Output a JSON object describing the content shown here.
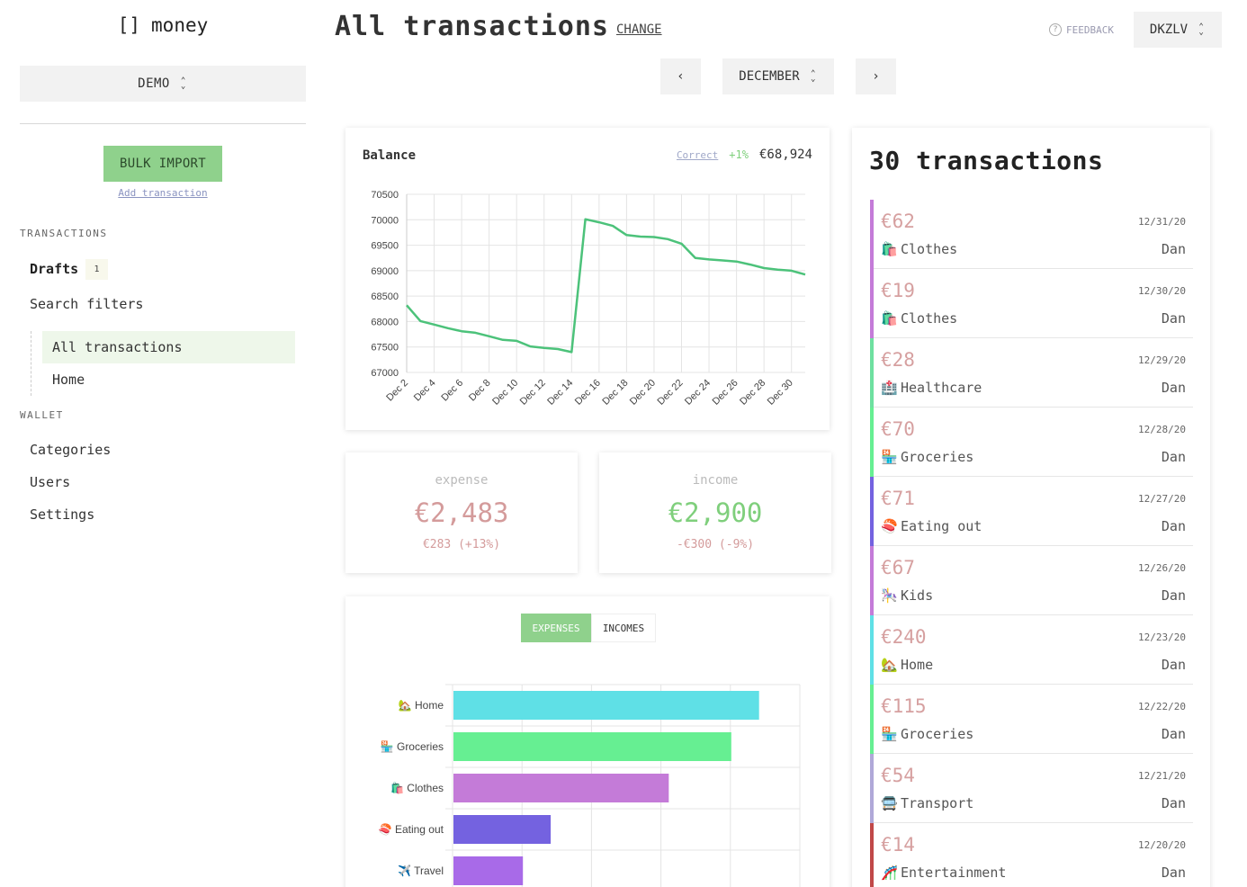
{
  "sidebar": {
    "logo_bracket": "[]",
    "logo_text": "money",
    "project": "DEMO",
    "bulk_import": "BULK IMPORT",
    "add_transaction": "Add transaction",
    "transactions_label": "TRANSACTIONS",
    "drafts": "Drafts",
    "drafts_count": "1",
    "search_filters": "Search filters",
    "filters": [
      "All transactions",
      "Home"
    ],
    "wallet_label": "WALLET",
    "wallet_items": [
      "Categories",
      "Users",
      "Settings"
    ]
  },
  "header": {
    "title": "All transactions",
    "change": "CHANGE",
    "feedback": "FEEDBACK",
    "feedback_icon": "?",
    "user": "DKZLV",
    "prev": "‹",
    "month": "DECEMBER",
    "next": "›"
  },
  "balance": {
    "title": "Balance",
    "correct": "Correct",
    "change": "+1%",
    "value": "€68,924"
  },
  "chart_data": [
    {
      "type": "line",
      "title": "Balance",
      "x": [
        "Dec 2",
        "Dec 3",
        "Dec 4",
        "Dec 5",
        "Dec 6",
        "Dec 7",
        "Dec 8",
        "Dec 9",
        "Dec 10",
        "Dec 11",
        "Dec 12",
        "Dec 13",
        "Dec 14",
        "Dec 15",
        "Dec 16",
        "Dec 17",
        "Dec 18",
        "Dec 19",
        "Dec 20",
        "Dec 21",
        "Dec 22",
        "Dec 23",
        "Dec 24",
        "Dec 25",
        "Dec 26",
        "Dec 27",
        "Dec 28",
        "Dec 29",
        "Dec 30",
        "Dec 31"
      ],
      "x_tick_labels": [
        "Dec 2",
        "Dec 4",
        "Dec 6",
        "Dec 8",
        "Dec 10",
        "Dec 12",
        "Dec 14",
        "Dec 16",
        "Dec 18",
        "Dec 20",
        "Dec 22",
        "Dec 24",
        "Dec 26",
        "Dec 28",
        "Dec 30"
      ],
      "series": [
        {
          "values": [
            68320,
            68010,
            67940,
            67870,
            67810,
            67780,
            67710,
            67640,
            67620,
            67510,
            67480,
            67460,
            67400,
            70010,
            69950,
            69880,
            69700,
            69670,
            69660,
            69620,
            69530,
            69250,
            69220,
            69200,
            69180,
            69120,
            69050,
            69020,
            69000,
            68924
          ]
        }
      ],
      "ylim": [
        67000,
        70500
      ],
      "y_ticks": [
        67000,
        67500,
        68000,
        68500,
        69000,
        69500,
        70000,
        70500
      ],
      "grid": true,
      "color": "#4cc27a"
    },
    {
      "type": "bar",
      "orientation": "horizontal",
      "categories": [
        "Home",
        "Groceries",
        "Clothes",
        "Eating out",
        "Travel"
      ],
      "category_icons": [
        "🏡",
        "🏪",
        "🛍️",
        "🍣",
        "✈️"
      ],
      "values": [
        2.2,
        2.0,
        1.55,
        0.7,
        0.5
      ],
      "colors": [
        "#5fe0e6",
        "#66ef92",
        "#c47bd8",
        "#7462e0",
        "#a86ae8"
      ],
      "grid": true
    }
  ],
  "expense": {
    "label": "expense",
    "value": "€2,483",
    "sub": "€283 (+13%)",
    "color": "#d49b9b"
  },
  "income": {
    "label": "income",
    "value": "€2,900",
    "sub": "-€300 (-9%)",
    "value_color": "#7fcf7c",
    "sub_color": "#d49b9b"
  },
  "tabs": {
    "expenses": "EXPENSES",
    "incomes": "INCOMES"
  },
  "transactions": {
    "title": "30 transactions",
    "items": [
      {
        "amount": "€62",
        "date": "12/31/20",
        "icon": "🛍️",
        "category": "Clothes",
        "user": "Dan",
        "color": "#c47bd8"
      },
      {
        "amount": "€19",
        "date": "12/30/20",
        "icon": "🛍️",
        "category": "Clothes",
        "user": "Dan",
        "color": "#c47bd8"
      },
      {
        "amount": "€28",
        "date": "12/29/20",
        "icon": "🏥",
        "category": "Healthcare",
        "user": "Dan",
        "color": "#6ee0a0"
      },
      {
        "amount": "€70",
        "date": "12/28/20",
        "icon": "🏪",
        "category": "Groceries",
        "user": "Dan",
        "color": "#66ef92"
      },
      {
        "amount": "€71",
        "date": "12/27/20",
        "icon": "🍣",
        "category": "Eating out",
        "user": "Dan",
        "color": "#7462e0"
      },
      {
        "amount": "€67",
        "date": "12/26/20",
        "icon": "🎠",
        "category": "Kids",
        "user": "Dan",
        "color": "#c47bd8"
      },
      {
        "amount": "€240",
        "date": "12/23/20",
        "icon": "🏡",
        "category": "Home",
        "user": "Dan",
        "color": "#5fe0e6"
      },
      {
        "amount": "€115",
        "date": "12/22/20",
        "icon": "🏪",
        "category": "Groceries",
        "user": "Dan",
        "color": "#66ef92"
      },
      {
        "amount": "€54",
        "date": "12/21/20",
        "icon": "🚍",
        "category": "Transport",
        "user": "Dan",
        "color": "#b0a8d8"
      },
      {
        "amount": "€14",
        "date": "12/20/20",
        "icon": "🎢",
        "category": "Entertainment",
        "user": "Dan",
        "color": "#c04848"
      }
    ]
  }
}
